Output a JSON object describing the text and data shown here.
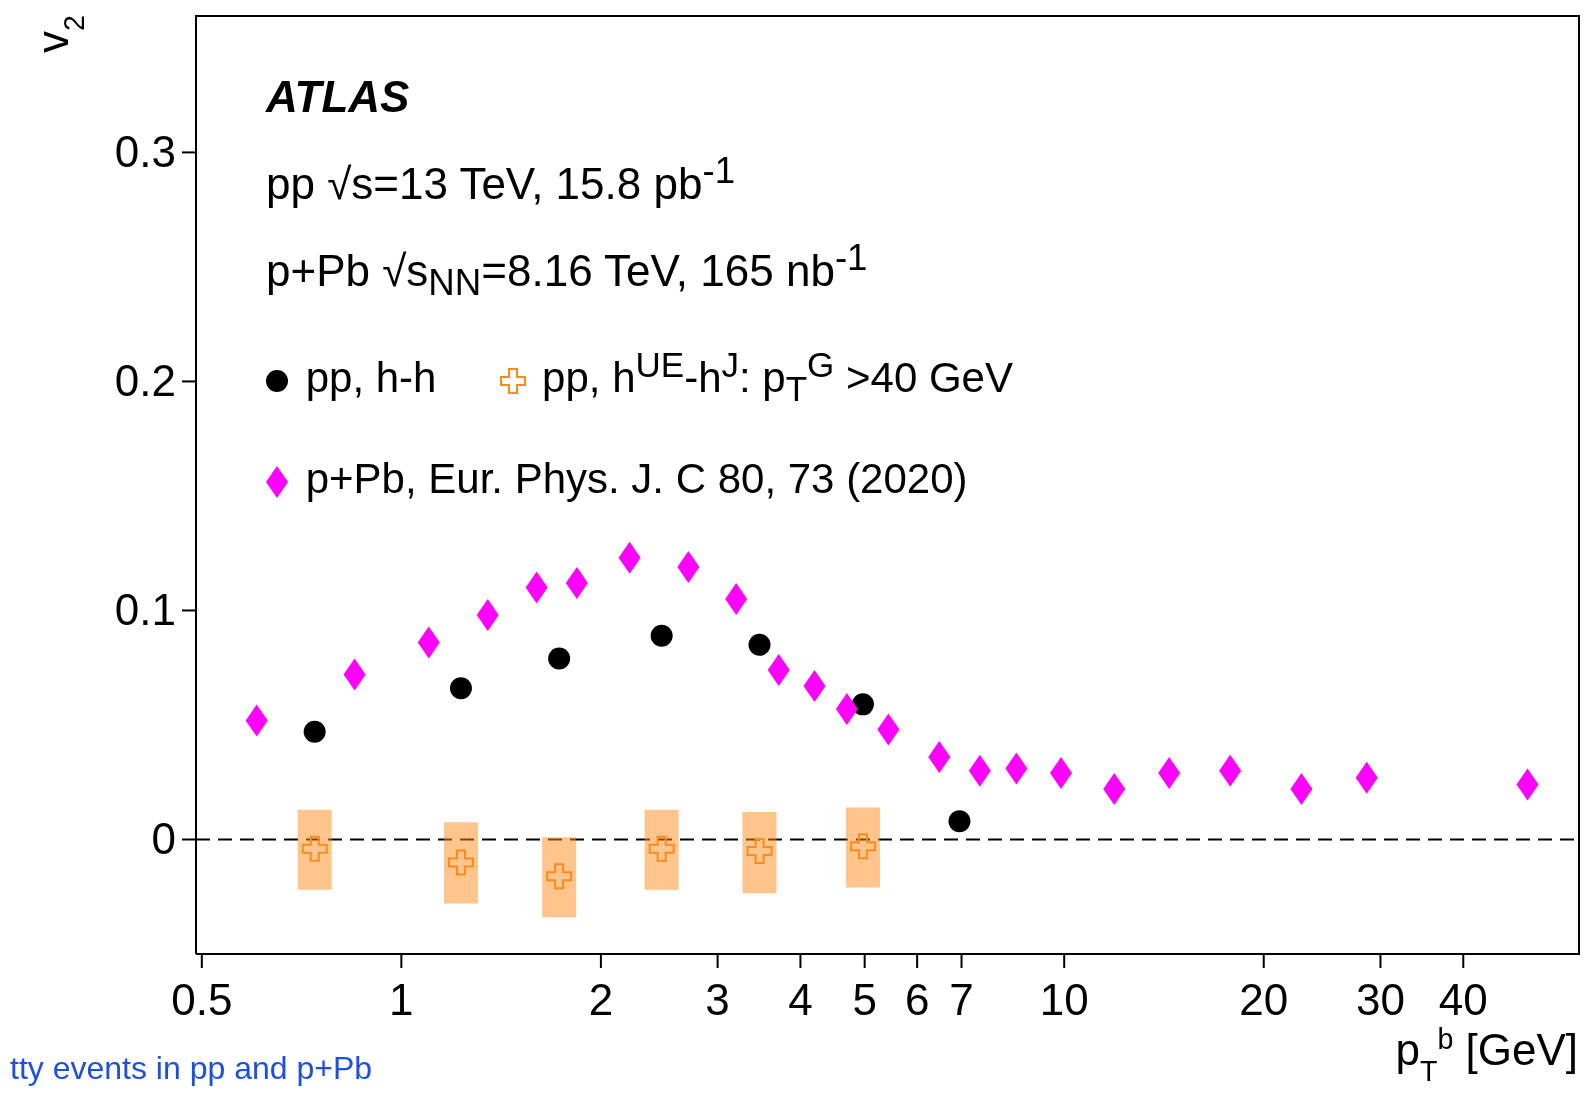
{
  "chart_data": {
    "type": "scatter",
    "xlabel": "p$_{T}$$^{b}$ [GeV]",
    "ylabel": "v$_{2}$",
    "log": "x",
    "xlim": [
      0.49,
      60
    ],
    "xticks": [
      0.5,
      1,
      2,
      3,
      4,
      5,
      6,
      7,
      10,
      20,
      30,
      40
    ],
    "ylim": [
      -0.05,
      0.36
    ],
    "yticks": [
      0,
      0.1,
      0.2,
      0.3
    ],
    "grid": false,
    "legend": "top left",
    "ref_lines": [
      {
        "axis": "y",
        "value": 0,
        "color": "#000000",
        "line_style": "dashed"
      }
    ],
    "annotations": [
      "ATLAS",
      "pp √s=13 TeV, 15.8 pb$^{-1}$",
      "p+Pb √s$_{NN}$=8.16 TeV, 165 nb$^{-1}$",
      "tty events in pp and p+Pb"
    ],
    "series": [
      {
        "name": "pp, h-h",
        "color": "#000000",
        "marker": "circle",
        "x": [
          0.74,
          1.23,
          1.73,
          2.47,
          3.47,
          4.97,
          6.95
        ],
        "values": [
          0.047,
          0.066,
          0.079,
          0.089,
          0.085,
          0.059,
          0.008
        ]
      },
      {
        "name": "pp, h$^{UE}$-h$^{J}$: p$_{T}$$^{G}$ >40 GeV",
        "color": "#ff8c1a",
        "marker": "cross",
        "x": [
          0.74,
          1.23,
          1.73,
          2.47,
          3.47,
          4.97
        ],
        "values": [
          -0.004,
          -0.01,
          -0.016,
          -0.004,
          -0.005,
          -0.003
        ],
        "errors": [
          [
            -0.022,
            0.013
          ],
          [
            -0.028,
            0.0075
          ],
          [
            -0.034,
            0.001
          ],
          [
            -0.022,
            0.013
          ],
          [
            -0.0235,
            0.012
          ],
          [
            -0.021,
            0.014
          ]
        ]
      },
      {
        "name": "p+Pb, Eur. Phys. J. C 80, 73 (2020)",
        "color": "#ff00ff",
        "marker": "diamond",
        "x": [
          0.605,
          0.85,
          1.1,
          1.35,
          1.6,
          1.84,
          2.21,
          2.71,
          3.2,
          3.71,
          4.2,
          4.7,
          5.43,
          6.48,
          7.46,
          8.47,
          9.89,
          11.9,
          14.4,
          17.8,
          22.8,
          28.6,
          50.0
        ],
        "values": [
          0.052,
          0.072,
          0.086,
          0.098,
          0.11,
          0.112,
          0.123,
          0.119,
          0.105,
          0.074,
          0.067,
          0.057,
          0.048,
          0.036,
          0.03,
          0.031,
          0.029,
          0.022,
          0.029,
          0.03,
          0.022,
          0.027,
          0.024
        ]
      }
    ]
  }
}
